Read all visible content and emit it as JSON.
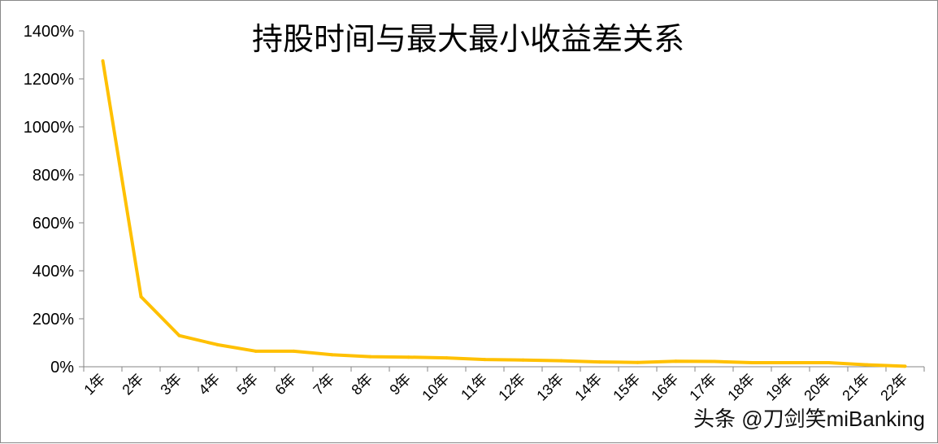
{
  "watermark": "头条 @刀剑笑miBanking",
  "chart_data": {
    "type": "line",
    "title": "持股时间与最大最小收益差关系",
    "xlabel": "",
    "ylabel": "",
    "ylim": [
      0,
      1400
    ],
    "y_ticks": [
      "0%",
      "200%",
      "400%",
      "600%",
      "800%",
      "1000%",
      "1200%",
      "1400%"
    ],
    "categories": [
      "1年",
      "2年",
      "3年",
      "4年",
      "5年",
      "6年",
      "7年",
      "8年",
      "9年",
      "10年",
      "11年",
      "12年",
      "13年",
      "14年",
      "15年",
      "16年",
      "17年",
      "18年",
      "19年",
      "20年",
      "21年",
      "22年"
    ],
    "series": [
      {
        "name": "",
        "color": "#FFC000",
        "values": [
          1275,
          292,
          130,
          92,
          65,
          65,
          50,
          42,
          40,
          37,
          30,
          28,
          25,
          20,
          18,
          23,
          22,
          17,
          17,
          17,
          8,
          2
        ]
      }
    ],
    "grid": false,
    "legend": "none"
  }
}
